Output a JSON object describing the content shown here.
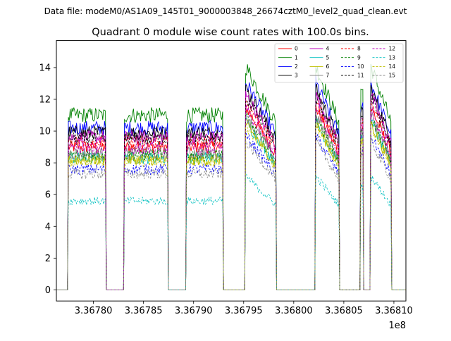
{
  "suptitle": "Data file: modeM0/AS1A09_145T01_9000003848_26674cztM0_level2_quad_clean.evt",
  "chart_data": {
    "type": "line",
    "title": "Quadrant 0 module wise count rates with 100.0s bins.",
    "xlabel": "",
    "ylabel": "",
    "x_offset_label": "1e8",
    "xlim": [
      3.367763,
      3.368112
    ],
    "ylim": [
      -0.7,
      15.7
    ],
    "x_ticks": [
      3.3678,
      3.36785,
      3.3679,
      3.36795,
      3.368,
      3.36805,
      3.3681
    ],
    "x_tick_labels": [
      "3.36780",
      "3.36785",
      "3.36790",
      "3.36795",
      "3.36800",
      "3.36805",
      "3.36810"
    ],
    "y_ticks": [
      0,
      2,
      4,
      6,
      8,
      10,
      12,
      14
    ],
    "y_tick_labels": [
      "0",
      "2",
      "4",
      "6",
      "8",
      "10",
      "12",
      "14"
    ],
    "grid": false,
    "legend_position": "top-right",
    "legend_columns": 4,
    "segments": [
      {
        "x_start": 3.367775,
        "x_end": 3.367812,
        "shape": "flat"
      },
      {
        "x_start": 3.367831,
        "x_end": 3.367874,
        "shape": "flat"
      },
      {
        "x_start": 3.367893,
        "x_end": 3.367929,
        "shape": "flat"
      },
      {
        "x_start": 3.367952,
        "x_end": 3.367982,
        "shape": "decay"
      },
      {
        "x_start": 3.368022,
        "x_end": 3.368045,
        "shape": "decay"
      },
      {
        "x_start": 3.368067,
        "x_end": 3.368069,
        "shape": "spike"
      },
      {
        "x_start": 3.368077,
        "x_end": 3.368097,
        "shape": "decay"
      }
    ],
    "series": [
      {
        "name": "0",
        "color": "#ff0000",
        "dash": "solid",
        "level": 9.0
      },
      {
        "name": "1",
        "color": "#008000",
        "dash": "solid",
        "level": 11.0
      },
      {
        "name": "2",
        "color": "#0000ff",
        "dash": "solid",
        "level": 10.2
      },
      {
        "name": "3",
        "color": "#000000",
        "dash": "solid",
        "level": 9.9
      },
      {
        "name": "4",
        "color": "#bf00bf",
        "dash": "solid",
        "level": 9.6
      },
      {
        "name": "5",
        "color": "#00bfbf",
        "dash": "solid",
        "level": 8.3
      },
      {
        "name": "6",
        "color": "#bfbf00",
        "dash": "solid",
        "level": 8.2
      },
      {
        "name": "7",
        "color": "#808080",
        "dash": "solid",
        "level": 8.6
      },
      {
        "name": "8",
        "color": "#ff0000",
        "dash": "dashed",
        "level": 9.3
      },
      {
        "name": "9",
        "color": "#008000",
        "dash": "dashed",
        "level": 8.5
      },
      {
        "name": "10",
        "color": "#0000ff",
        "dash": "dashed",
        "level": 7.6
      },
      {
        "name": "11",
        "color": "#000000",
        "dash": "dashed",
        "level": 9.5
      },
      {
        "name": "12",
        "color": "#bf00bf",
        "dash": "dashed",
        "level": 8.9
      },
      {
        "name": "13",
        "color": "#00bfbf",
        "dash": "dashed",
        "level": 5.6
      },
      {
        "name": "14",
        "color": "#bfbf00",
        "dash": "dashed",
        "level": 8.1
      },
      {
        "name": "15",
        "color": "#808080",
        "dash": "dashed",
        "level": 7.3
      }
    ]
  }
}
